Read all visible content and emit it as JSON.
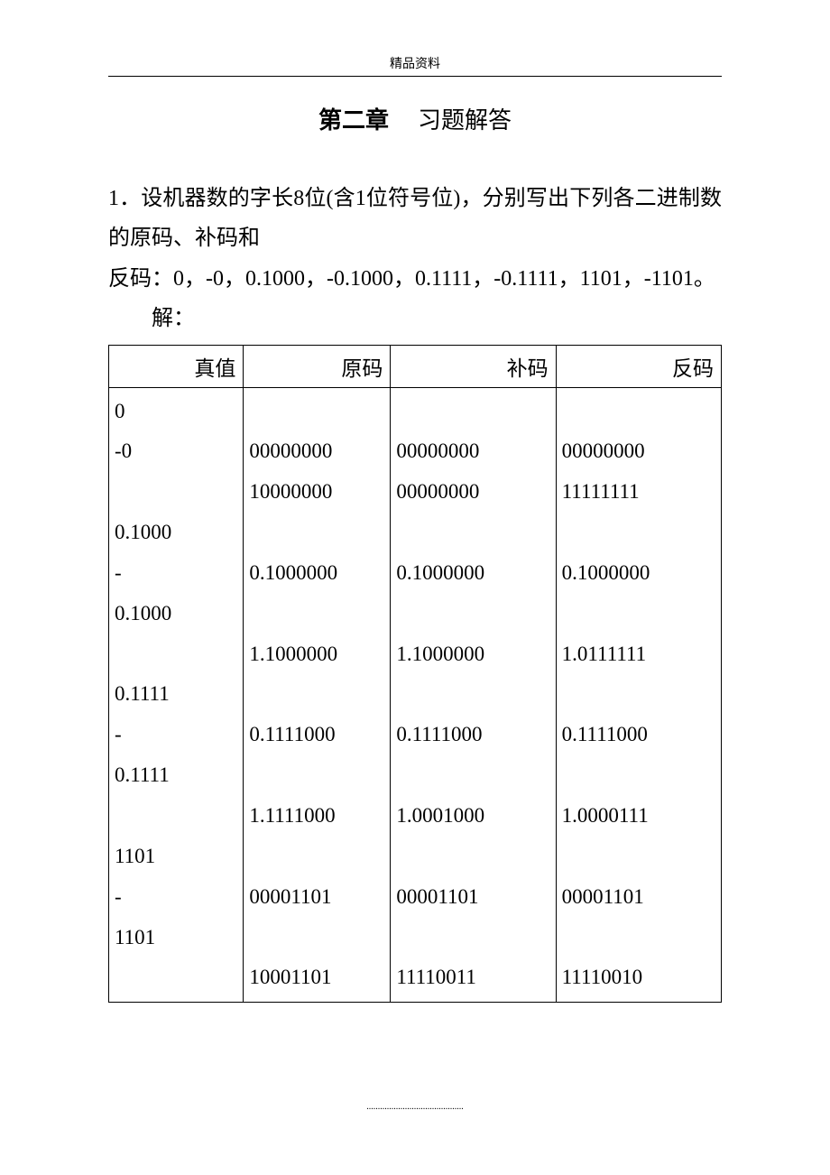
{
  "header": {
    "label": "精品资料"
  },
  "title": {
    "bold": "第二章",
    "normal": "习题解答"
  },
  "problem": {
    "line1": "1．设机器数的字长8位(含1位符号位)，分别写出下列各二进制数的原码、补码和",
    "line2": "反码：0，-0，0.1000，-0.1000，0.1111，-0.1111，1101，-1101。",
    "answer_label": "解："
  },
  "table": {
    "headers": [
      "真值",
      "原码",
      "补码",
      "反码"
    ],
    "col1": "0\n-0\n\n0.1000\n-\n0.1000\n\n0.1111\n-\n0.1111\n\n1101\n-\n1101",
    "col2": "\n00000000\n10000000\n\n0.1000000\n\n1.1000000\n\n0.1111000\n\n1.1111000\n\n00001101\n\n10001101",
    "col3": "\n00000000\n00000000\n\n0.1000000\n\n1.1000000\n\n0.1111000\n\n1.0001000\n\n00001101\n\n11110011",
    "col4": "\n00000000\n11111111\n\n0.1000000\n\n1.0111111\n\n0.1111000\n\n1.0000111\n\n00001101\n\n11110010"
  },
  "footer": {
    "dots": "..........................................."
  }
}
